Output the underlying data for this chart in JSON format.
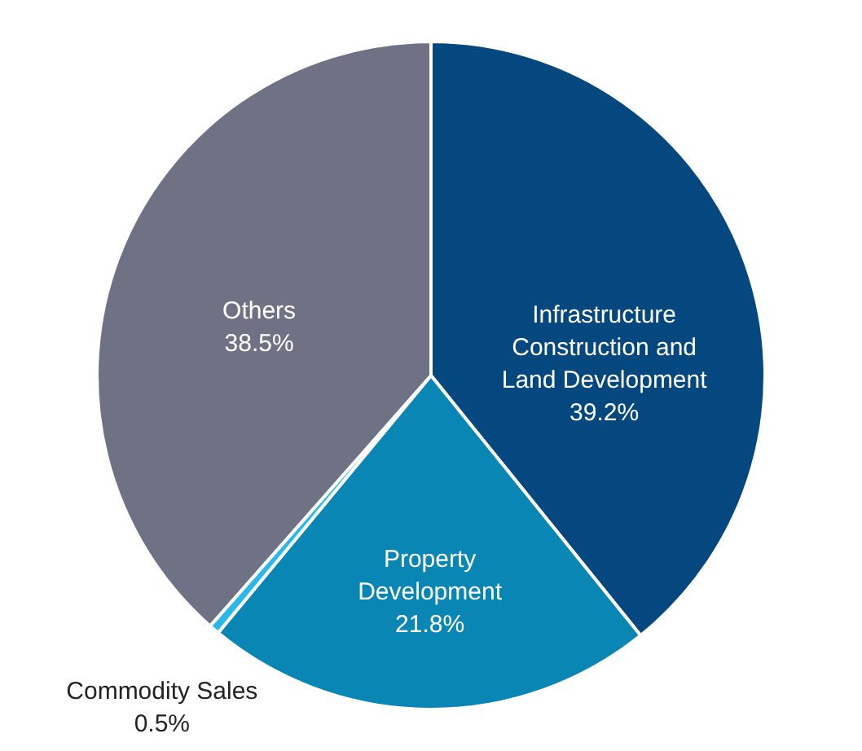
{
  "chart_data": {
    "type": "pie",
    "categories": [
      "Infrastructure Construction and Land Development",
      "Property Development",
      "Commodity Sales",
      "Others"
    ],
    "values": [
      39.2,
      21.8,
      0.5,
      38.5
    ],
    "value_labels": [
      "39.2%",
      "21.8%",
      "0.5%",
      "38.5%"
    ],
    "colors": [
      "#05477f",
      "#0a86b5",
      "#29b8e8",
      "#6e7284"
    ]
  }
}
